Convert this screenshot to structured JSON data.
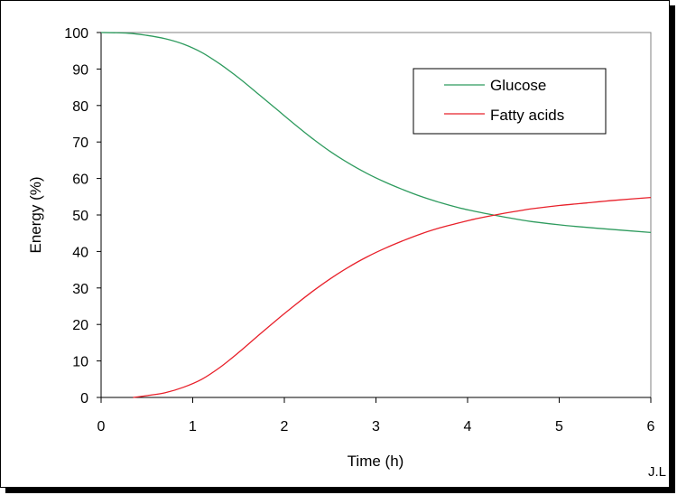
{
  "chart_data": {
    "type": "line",
    "title": "",
    "xlabel": "Time (h)",
    "ylabel": "Energy (%)",
    "xlim": [
      0,
      6
    ],
    "ylim": [
      0,
      100
    ],
    "xticks": [
      0,
      1,
      2,
      3,
      4,
      5,
      6
    ],
    "yticks": [
      0,
      10,
      20,
      30,
      40,
      50,
      60,
      70,
      80,
      90,
      100
    ],
    "grid": false,
    "legend_position": "top-right",
    "series": [
      {
        "name": "Glucose",
        "color": "#2e9b5e",
        "x": [
          0,
          0.3,
          0.5,
          0.7,
          0.9,
          1.1,
          1.3,
          1.5,
          1.7,
          1.9,
          2.1,
          2.3,
          2.5,
          2.7,
          2.9,
          3.1,
          3.3,
          3.5,
          3.7,
          3.9,
          4.1,
          4.3,
          4.5,
          4.7,
          5.0,
          5.3,
          5.6,
          6.0
        ],
        "y": [
          100,
          99.8,
          99.2,
          98.3,
          96.8,
          94.5,
          91.3,
          87.6,
          83.5,
          79.3,
          75.1,
          71.1,
          67.4,
          64.2,
          61.4,
          59.0,
          56.9,
          55.0,
          53.4,
          52.0,
          50.9,
          49.9,
          49.0,
          48.2,
          47.3,
          46.6,
          46.0,
          45.2
        ]
      },
      {
        "name": "Fatty acids",
        "color": "#e8202a",
        "x": [
          0.35,
          0.5,
          0.7,
          0.9,
          1.1,
          1.3,
          1.5,
          1.7,
          1.9,
          2.1,
          2.3,
          2.5,
          2.7,
          2.9,
          3.1,
          3.3,
          3.5,
          3.7,
          3.9,
          4.1,
          4.3,
          4.5,
          4.7,
          5.0,
          5.3,
          5.6,
          6.0
        ],
        "y": [
          0,
          0.5,
          1.3,
          2.8,
          5.0,
          8.3,
          12.3,
          16.6,
          20.9,
          25.0,
          28.9,
          32.5,
          35.7,
          38.5,
          40.9,
          43.0,
          44.9,
          46.5,
          47.8,
          49.0,
          50.0,
          50.9,
          51.7,
          52.6,
          53.3,
          54.0,
          54.8
        ]
      }
    ]
  },
  "credit": "J.L"
}
